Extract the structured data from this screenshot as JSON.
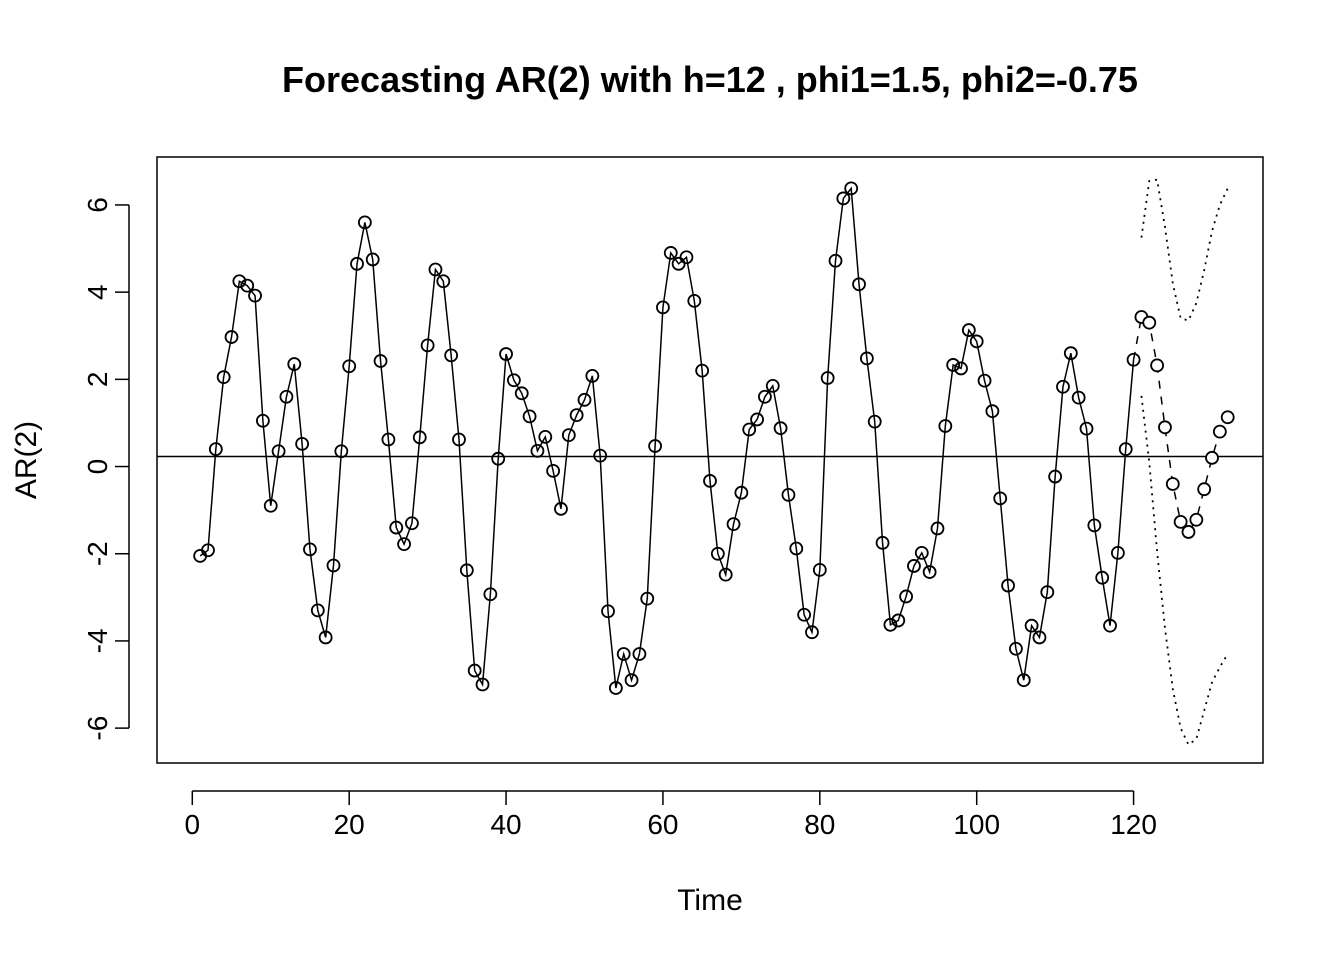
{
  "chart_data": {
    "type": "line",
    "title": "Forecasting AR(2) with h=12 , phi1=1.5, phi2=-0.75",
    "xlabel": "Time",
    "ylabel": "AR(2)",
    "xlim": [
      -4.5,
      136.5
    ],
    "ylim": [
      -6.8,
      7.1
    ],
    "x_ticks": [
      "0",
      "20",
      "40",
      "60",
      "80",
      "100",
      "120"
    ],
    "y_ticks": [
      "-6",
      "-4",
      "-2",
      "0",
      "2",
      "4",
      "6"
    ],
    "mean_line": 0.23,
    "series": [
      {
        "values": [
          -2.05,
          -1.92,
          0.4,
          2.05,
          2.97,
          4.25,
          4.15,
          3.92,
          1.05,
          -0.9,
          0.35,
          1.6,
          2.35,
          0.52,
          -1.9,
          -3.3,
          -3.92,
          -2.27,
          0.35,
          2.3,
          4.65,
          5.6,
          4.75,
          2.42,
          0.62,
          -1.4,
          -1.78,
          -1.3,
          0.67,
          2.78,
          4.52,
          4.25,
          2.55,
          0.62,
          -2.38,
          -4.68,
          -5.0,
          -2.93,
          0.18,
          2.58,
          1.98,
          1.68,
          1.15,
          0.36,
          0.68,
          -0.1,
          -0.97,
          0.72,
          1.18,
          1.53,
          2.08,
          0.25,
          -3.32,
          -5.08,
          -4.3,
          -4.9,
          -4.3,
          -3.03,
          0.47,
          3.65,
          4.9,
          4.65,
          4.8,
          3.8,
          2.2,
          -0.33,
          -2.0,
          -2.48,
          -1.32,
          -0.6,
          0.85,
          1.08,
          1.6,
          1.85,
          0.88,
          -0.65,
          -1.88,
          -3.4,
          -3.8,
          -2.37,
          2.03,
          4.72,
          6.15,
          6.38,
          4.18,
          2.48,
          1.03,
          -1.75,
          -3.63,
          -3.53,
          -2.98,
          -2.28,
          -1.98,
          -2.42,
          -1.42,
          0.93,
          2.33,
          2.25,
          3.13,
          2.87,
          1.97,
          1.27,
          -0.73,
          -2.73,
          -4.18,
          -4.9,
          -3.65,
          -3.92,
          -2.88,
          -0.23,
          1.83,
          2.6,
          1.58,
          0.87,
          -1.35,
          -2.55,
          -3.65,
          -1.98,
          0.4,
          2.45
        ]
      },
      {
        "name": "forecast",
        "start": 121,
        "values": [
          3.43,
          3.3,
          2.32,
          0.9,
          -0.4,
          -1.27,
          -1.5,
          -1.22,
          -0.52,
          0.2,
          0.8,
          1.13
        ]
      },
      {
        "name": "upper",
        "start": 121,
        "values": [
          5.25,
          6.55,
          6.58,
          5.5,
          4.2,
          3.4,
          3.35,
          3.75,
          4.5,
          5.4,
          6.0,
          6.38
        ]
      },
      {
        "name": "lower",
        "start": 121,
        "values": [
          1.62,
          0.1,
          -1.95,
          -3.7,
          -5.1,
          -6.0,
          -6.38,
          -6.25,
          -5.6,
          -4.95,
          -4.6,
          -4.3
        ]
      }
    ]
  }
}
